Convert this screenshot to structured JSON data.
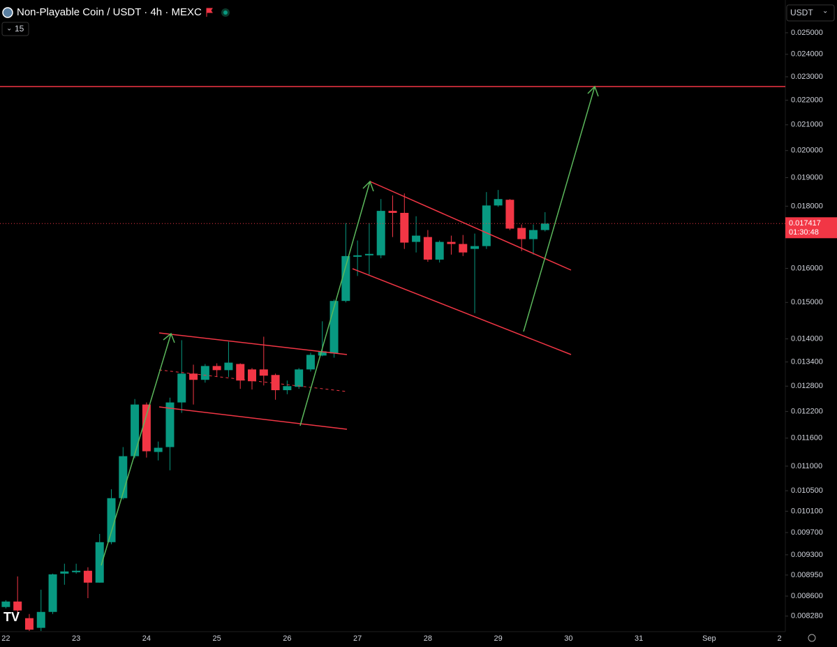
{
  "chart_data": {
    "type": "candlestick",
    "title": "Non-Playable Coin / USDT · 4h · MEXC",
    "categories": [
      "22",
      null,
      null,
      null,
      null,
      null,
      "23",
      null,
      null,
      null,
      null,
      null,
      "24",
      null,
      null,
      null,
      null,
      null,
      "25",
      null,
      null,
      null,
      null,
      null,
      "26",
      null,
      null,
      null,
      null,
      null,
      "27",
      null,
      null,
      null,
      null,
      null,
      "28",
      null,
      null,
      null,
      null,
      null,
      "29",
      null,
      null,
      null,
      null,
      null,
      "30",
      null,
      null,
      null,
      null,
      null,
      "31",
      null,
      null,
      null,
      null,
      null,
      "Sep",
      null,
      null,
      null,
      null,
      null,
      "2"
    ],
    "open": [
      0.008424,
      0.008512,
      0.008248,
      0.008098,
      0.008346,
      0.008974,
      0.008998,
      0.009023,
      0.008822,
      0.009525,
      0.010353,
      0.01121,
      0.012362,
      0.0113,
      0.011405,
      0.012411,
      0.013108,
      0.012954,
      0.013298,
      0.013194,
      0.013349,
      0.013212,
      0.013212,
      0.013074,
      0.012703,
      0.012784,
      0.013212,
      0.013564,
      0.013618,
      0.015042,
      0.016355,
      0.0164,
      0.0164,
      0.017841,
      0.017773,
      0.016822,
      0.016978,
      0.016267,
      0.016822,
      0.016756,
      0.0166,
      0.016689,
      0.018024,
      0.01822,
      0.017273,
      0.016911,
      0.017204,
      null,
      null,
      null,
      null,
      null,
      null,
      null,
      null,
      null,
      null,
      null,
      null,
      null,
      null,
      null,
      null,
      null,
      null,
      null,
      null
    ],
    "high": [
      0.008534,
      0.008927,
      0.008313,
      0.008705,
      0.008974,
      0.009144,
      0.009144,
      0.009083,
      0.009675,
      0.010529,
      0.011405,
      0.012492,
      0.012411,
      0.011525,
      0.012524,
      0.013964,
      0.013332,
      0.013349,
      0.013366,
      0.013927,
      0.013366,
      0.013246,
      0.014057,
      0.013108,
      0.012937,
      0.013246,
      0.013636,
      0.014473,
      0.015083,
      0.017433,
      0.016867,
      0.017433,
      0.018244,
      0.018366,
      0.018439,
      0.01766,
      0.017204,
      0.016867,
      0.017023,
      0.017045,
      0.01709,
      0.018487,
      0.018561,
      0.018244,
      0.017387,
      0.017387,
      0.017796,
      null,
      null,
      null,
      null,
      null,
      null,
      null,
      null,
      null,
      null,
      null,
      null,
      null,
      null,
      null,
      null,
      null,
      null,
      null,
      null
    ],
    "low": [
      0.008402,
      0.008259,
      0.00805,
      0.00805,
      0.008313,
      0.008787,
      0.008974,
      0.008567,
      0.008822,
      0.009488,
      0.010327,
      0.011165,
      0.01118,
      0.01112,
      0.010914,
      0.012168,
      0.012362,
      0.012886,
      0.013023,
      0.013023,
      0.012735,
      0.012719,
      0.012817,
      0.012475,
      0.012606,
      0.012735,
      0.01316,
      0.013546,
      0.01351,
      0.015,
      0.015771,
      0.015813,
      0.016311,
      0.016978,
      0.0166,
      0.016489,
      0.0162,
      0.016178,
      0.016422,
      0.016377,
      0.014698,
      0.0166,
      0.017977,
      0.017204,
      0.016533,
      0.016422,
      0.017159,
      null,
      null,
      null,
      null,
      null,
      null,
      null,
      null,
      null,
      null,
      null,
      null,
      null,
      null,
      null,
      null,
      null,
      null,
      null,
      null
    ],
    "close": [
      0.008512,
      0.008369,
      0.00807,
      0.008346,
      0.008962,
      0.009011,
      0.009023,
      0.008822,
      0.009525,
      0.010353,
      0.01121,
      0.012362,
      0.011315,
      0.01139,
      0.012411,
      0.013108,
      0.012954,
      0.013298,
      0.013194,
      0.013383,
      0.012937,
      0.01292,
      0.013057,
      0.012703,
      0.0128,
      0.013212,
      0.013582,
      0.013673,
      0.015042,
      0.016377,
      0.0164,
      0.016444,
      0.017841,
      0.017773,
      0.0168,
      0.017023,
      0.016267,
      0.016822,
      0.016756,
      0.016489,
      0.016689,
      0.018024,
      0.018244,
      0.017251,
      0.016911,
      0.017204,
      0.017417,
      null,
      null,
      null,
      null,
      null,
      null,
      null,
      null,
      null,
      null,
      null,
      null,
      null,
      null,
      null,
      null,
      null,
      null,
      null,
      null
    ],
    "up_color": "#089981",
    "down_color": "#f23645",
    "log_scale": true,
    "ylim": [
      0.00804,
      0.0266
    ],
    "yticks": [
      {
        "value": 0.025,
        "label": "0.025000"
      },
      {
        "value": 0.024,
        "label": "0.024000"
      },
      {
        "value": 0.023,
        "label": "0.023000"
      },
      {
        "value": 0.022,
        "label": "0.022000"
      },
      {
        "value": 0.021,
        "label": "0.021000"
      },
      {
        "value": 0.02,
        "label": "0.020000"
      },
      {
        "value": 0.019,
        "label": "0.019000"
      },
      {
        "value": 0.018,
        "label": "0.018000"
      },
      {
        "value": 0.016,
        "label": "0.016000"
      },
      {
        "value": 0.015,
        "label": "0.015000"
      },
      {
        "value": 0.014,
        "label": "0.014000"
      },
      {
        "value": 0.0134,
        "label": "0.013400"
      },
      {
        "value": 0.0128,
        "label": "0.012800"
      },
      {
        "value": 0.0122,
        "label": "0.012200"
      },
      {
        "value": 0.0116,
        "label": "0.011600"
      },
      {
        "value": 0.011,
        "label": "0.011000"
      },
      {
        "value": 0.0105,
        "label": "0.010500"
      },
      {
        "value": 0.0101,
        "label": "0.010100"
      },
      {
        "value": 0.0097,
        "label": "0.009700"
      },
      {
        "value": 0.0093,
        "label": "0.009300"
      },
      {
        "value": 0.00895,
        "label": "0.008950"
      },
      {
        "value": 0.0086,
        "label": "0.008600"
      },
      {
        "value": 0.00828,
        "label": "0.008280"
      }
    ],
    "last_price": {
      "value": 0.017417,
      "label": "0.017417"
    },
    "countdown": "01:30:48"
  },
  "toolbar": {
    "indicator_count": "15",
    "currency": "USDT"
  }
}
